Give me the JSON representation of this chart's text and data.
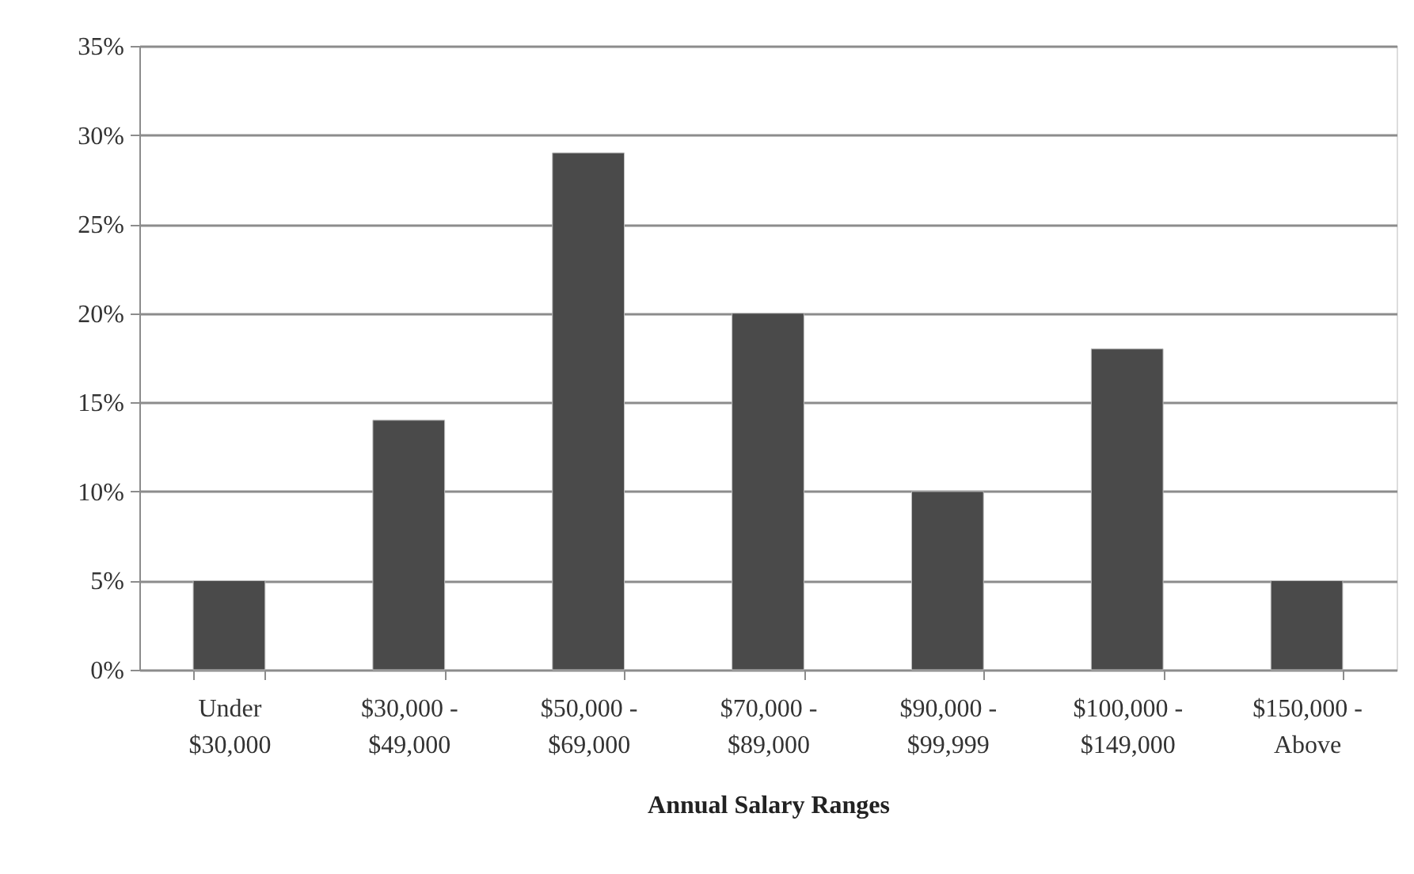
{
  "chart_data": {
    "type": "bar",
    "xlabel": "Annual Salary Ranges",
    "categories": [
      "Under\n$30,000",
      "$30,000 -\n$49,000",
      "$50,000 -\n$69,000",
      "$70,000 -\n$89,000",
      "$90,000 -\n$99,999",
      "$100,000 -\n$149,000",
      "$150,000 -\nAbove"
    ],
    "values": [
      5,
      14,
      29,
      20,
      10,
      18,
      5
    ],
    "color": "#4a4a4a",
    "ylim": [
      0,
      35
    ],
    "yticks": [
      {
        "value": 0,
        "label": "0%"
      },
      {
        "value": 5,
        "label": "5%"
      },
      {
        "value": 10,
        "label": "10%"
      },
      {
        "value": 15,
        "label": "15%"
      },
      {
        "value": 20,
        "label": "20%"
      },
      {
        "value": 25,
        "label": "25%"
      },
      {
        "value": 30,
        "label": "30%"
      },
      {
        "value": 35,
        "label": "35%"
      }
    ],
    "grid": "y"
  }
}
